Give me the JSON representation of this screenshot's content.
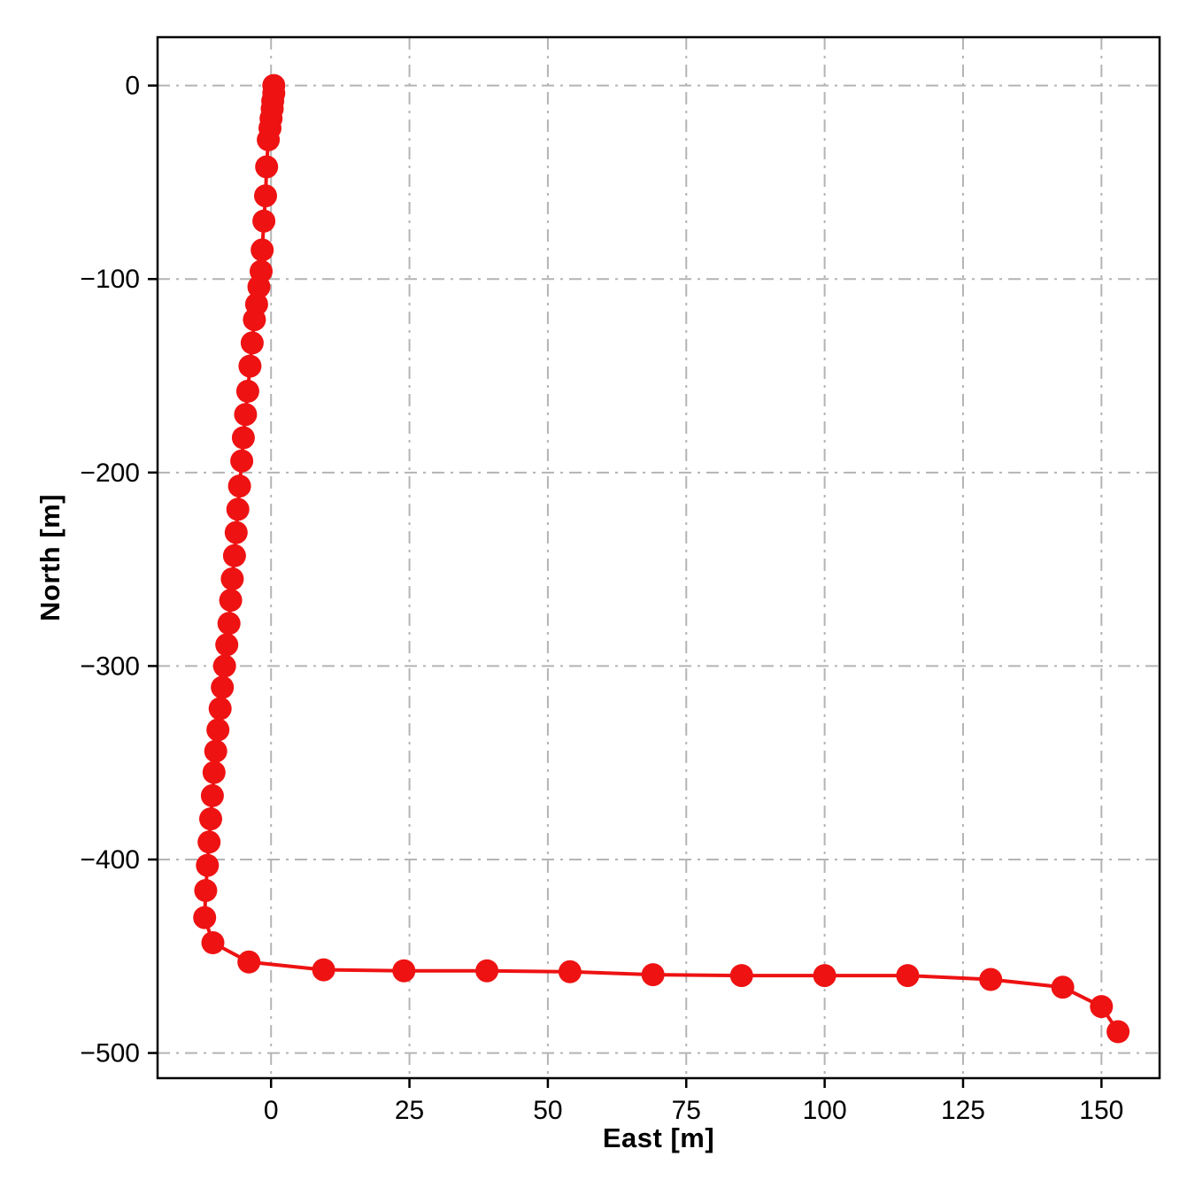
{
  "figure": {
    "background": "#ffffff"
  },
  "chart_data": {
    "type": "line",
    "title": "",
    "xlabel": "East [m]",
    "ylabel": "North [m]",
    "xlim": [
      -20.5,
      160.5
    ],
    "ylim": [
      -513,
      25
    ],
    "xticks": [
      0,
      25,
      50,
      75,
      100,
      125,
      150
    ],
    "yticks": [
      0,
      -100,
      -200,
      -300,
      -400,
      -500
    ],
    "grid": {
      "on": true,
      "style": "dashdot",
      "color": "#b4b4b4"
    },
    "legend": {
      "visible": false
    },
    "series": [
      {
        "name": "trajectory",
        "color": "#ee1212",
        "marker": "circle",
        "marker_size": 13,
        "line_width": 4,
        "points": [
          [
            0.5,
            0
          ],
          [
            0.5,
            -4
          ],
          [
            0.3,
            -8
          ],
          [
            0.2,
            -12
          ],
          [
            0.0,
            -17
          ],
          [
            -0.2,
            -22
          ],
          [
            -0.5,
            -28
          ],
          [
            -0.8,
            -42
          ],
          [
            -1.0,
            -57
          ],
          [
            -1.3,
            -70
          ],
          [
            -1.6,
            -85
          ],
          [
            -1.8,
            -96
          ],
          [
            -2.2,
            -104
          ],
          [
            -2.6,
            -113
          ],
          [
            -3.0,
            -121
          ],
          [
            -3.4,
            -133
          ],
          [
            -3.8,
            -145
          ],
          [
            -4.2,
            -158
          ],
          [
            -4.6,
            -170
          ],
          [
            -5.0,
            -182
          ],
          [
            -5.3,
            -194
          ],
          [
            -5.7,
            -207
          ],
          [
            -6.0,
            -219
          ],
          [
            -6.3,
            -231
          ],
          [
            -6.6,
            -243
          ],
          [
            -7.0,
            -255
          ],
          [
            -7.3,
            -266
          ],
          [
            -7.6,
            -278
          ],
          [
            -8.0,
            -289
          ],
          [
            -8.4,
            -300
          ],
          [
            -8.8,
            -311
          ],
          [
            -9.2,
            -322
          ],
          [
            -9.6,
            -333
          ],
          [
            -10.0,
            -344
          ],
          [
            -10.3,
            -355
          ],
          [
            -10.6,
            -367
          ],
          [
            -10.9,
            -379
          ],
          [
            -11.2,
            -391
          ],
          [
            -11.5,
            -403
          ],
          [
            -11.8,
            -416
          ],
          [
            -12.0,
            -430
          ],
          [
            -10.5,
            -443
          ],
          [
            -4.0,
            -453
          ],
          [
            9.5,
            -457
          ],
          [
            24,
            -457.5
          ],
          [
            39,
            -457.5
          ],
          [
            54,
            -458
          ],
          [
            69,
            -459.5
          ],
          [
            85,
            -460
          ],
          [
            100,
            -460
          ],
          [
            115,
            -460
          ],
          [
            130,
            -462
          ],
          [
            143,
            -466
          ],
          [
            150,
            -476
          ],
          [
            153,
            -489
          ]
        ]
      }
    ]
  }
}
